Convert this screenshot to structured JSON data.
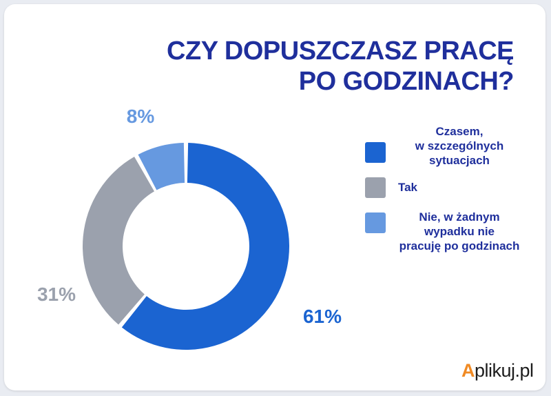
{
  "title_lines": [
    "CZY DOPUSZCZASZ PRACĘ",
    "PO GODZINACH?"
  ],
  "colors": {
    "title": "#1f2f9c",
    "czasem": "#1b64d1",
    "tak": "#9ba1ad",
    "nie": "#6699e0",
    "brand_accent": "#f08a24"
  },
  "legend": [
    {
      "lines": [
        "Czasem,",
        "w szczególnych",
        "sytuacjach"
      ],
      "color": "#1b64d1"
    },
    {
      "lines": [
        "Tak"
      ],
      "color": "#9ba1ad"
    },
    {
      "lines": [
        "Nie, w żadnym",
        "wypadku nie",
        "pracuję po godzinach"
      ],
      "color": "#6699e0"
    }
  ],
  "brand": {
    "accent": "A",
    "rest": "plikuj.pl"
  },
  "chart_data": {
    "type": "pie",
    "donut": true,
    "title": "CZY DOPUSZCZASZ PRACĘ PO GODZINACH?",
    "categories": [
      "Czasem, w szczególnych sytuacjach",
      "Tak",
      "Nie, w żadnym wypadku nie pracuję po godzinach"
    ],
    "values": [
      61,
      31,
      8
    ],
    "labels": [
      "61%",
      "31%",
      "8%"
    ],
    "colors": [
      "#1b64d1",
      "#9ba1ad",
      "#6699e0"
    ],
    "legend_position": "right"
  }
}
